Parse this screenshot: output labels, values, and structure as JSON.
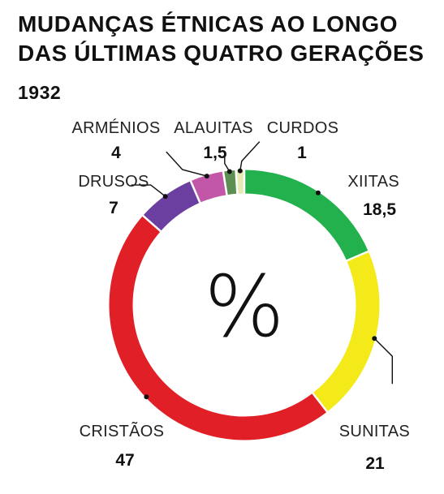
{
  "title_line1": "MUDANÇAS ÉTNICAS AO LONGO",
  "title_line2": "DAS ÚLTIMAS QUATRO GERAÇÕES",
  "year": "1932",
  "center_symbol": "%",
  "chart_data": {
    "type": "pie",
    "style": "donut",
    "start": "top, clockwise",
    "slices": [
      {
        "label": "XIITAS",
        "display_value": "18,5",
        "value": 18.5,
        "color": "#22b14c"
      },
      {
        "label": "SUNITAS",
        "display_value": "21",
        "value": 21,
        "color": "#f4ea1a"
      },
      {
        "label": "CRISTÃOS",
        "display_value": "47",
        "value": 47,
        "color": "#e11f26"
      },
      {
        "label": "DRUSOS",
        "display_value": "7",
        "value": 7,
        "color": "#6a3fa0"
      },
      {
        "label": "ARMÉNIOS",
        "display_value": "4",
        "value": 4,
        "color": "#c257a8"
      },
      {
        "label": "ALAUITAS",
        "display_value": "1,5",
        "value": 1.5,
        "color": "#5e8f52"
      },
      {
        "label": "CURDOS",
        "display_value": "1",
        "value": 1,
        "color": "#e5e9b4"
      }
    ]
  }
}
